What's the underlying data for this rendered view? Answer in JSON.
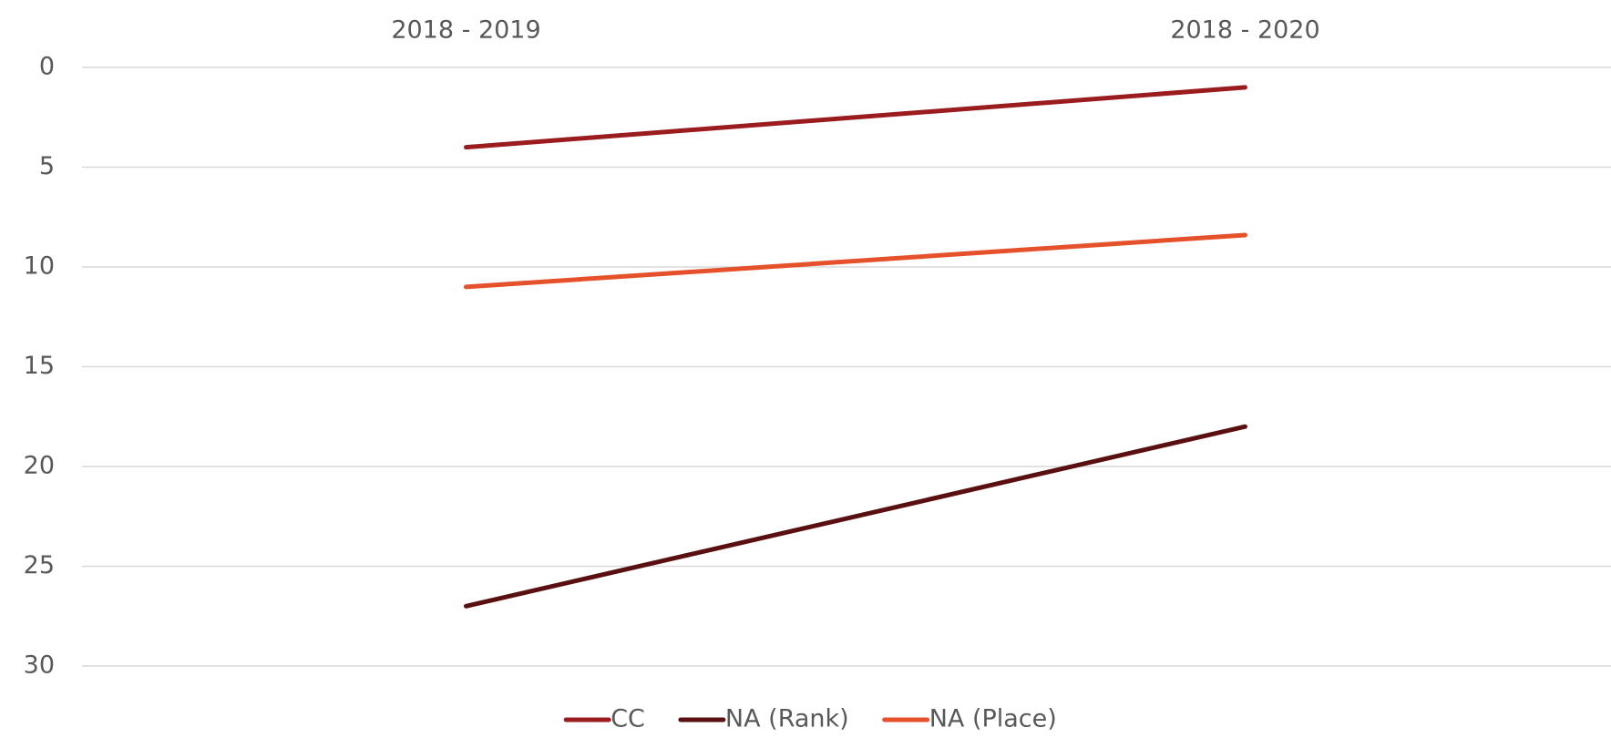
{
  "chart_data": {
    "type": "line",
    "categories": [
      "2018 - 2019",
      "2018 - 2020"
    ],
    "series": [
      {
        "name": "CC",
        "color": "#9b1c1f",
        "values": [
          4,
          1
        ]
      },
      {
        "name": "NA (Rank)",
        "color": "#5a1010",
        "values": [
          27,
          18
        ]
      },
      {
        "name": "NA (Place)",
        "color": "#e4512a",
        "values": [
          11,
          8.4
        ]
      }
    ],
    "ylim": [
      0,
      30
    ],
    "yticks": [
      0,
      5,
      10,
      15,
      20,
      25,
      30
    ],
    "inverted": true,
    "grid": true,
    "legend": "bottom"
  }
}
